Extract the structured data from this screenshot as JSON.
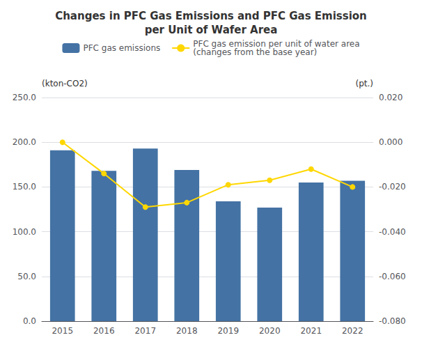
{
  "chart_data": {
    "type": "bar",
    "title": "Changes in PFC Gas Emissions and PFC Gas Emission\nper Unit of Wafer Area",
    "categories": [
      "2015",
      "2016",
      "2017",
      "2018",
      "2019",
      "2020",
      "2021",
      "2022"
    ],
    "series": [
      {
        "name": "PFC gas emissions",
        "type": "bar",
        "color": "#4472a4",
        "values": [
          191,
          168,
          193,
          169,
          134,
          127,
          155,
          157
        ]
      },
      {
        "name": "PFC gas emission per unit of water area\n(changes from the base year)",
        "type": "line",
        "color": "#FFD700",
        "marker": "circle",
        "axis": "y2",
        "values": [
          0.0,
          -0.014,
          -0.029,
          -0.027,
          -0.019,
          -0.017,
          -0.012,
          -0.02
        ]
      }
    ],
    "ylabel": "(kton-CO2)",
    "y2label": "(pt.)",
    "ylim": [
      0,
      250
    ],
    "yticks": [
      {
        "value": 0,
        "label": "0.0"
      },
      {
        "value": 50,
        "label": "50.0"
      },
      {
        "value": 100,
        "label": "100.0"
      },
      {
        "value": 150,
        "label": "150.0"
      },
      {
        "value": 200,
        "label": "200.0"
      },
      {
        "value": 250,
        "label": "250.0"
      }
    ],
    "y2lim": [
      -0.08,
      0.02
    ],
    "y2ticks": [
      {
        "value": -0.08,
        "label": "-0.080"
      },
      {
        "value": -0.06,
        "label": "-0.060"
      },
      {
        "value": -0.04,
        "label": "-0.040"
      },
      {
        "value": -0.02,
        "label": "-0.020"
      },
      {
        "value": 0.0,
        "label": "0.000"
      },
      {
        "value": 0.02,
        "label": "0.020"
      }
    ],
    "grid": true,
    "legend": "top"
  }
}
